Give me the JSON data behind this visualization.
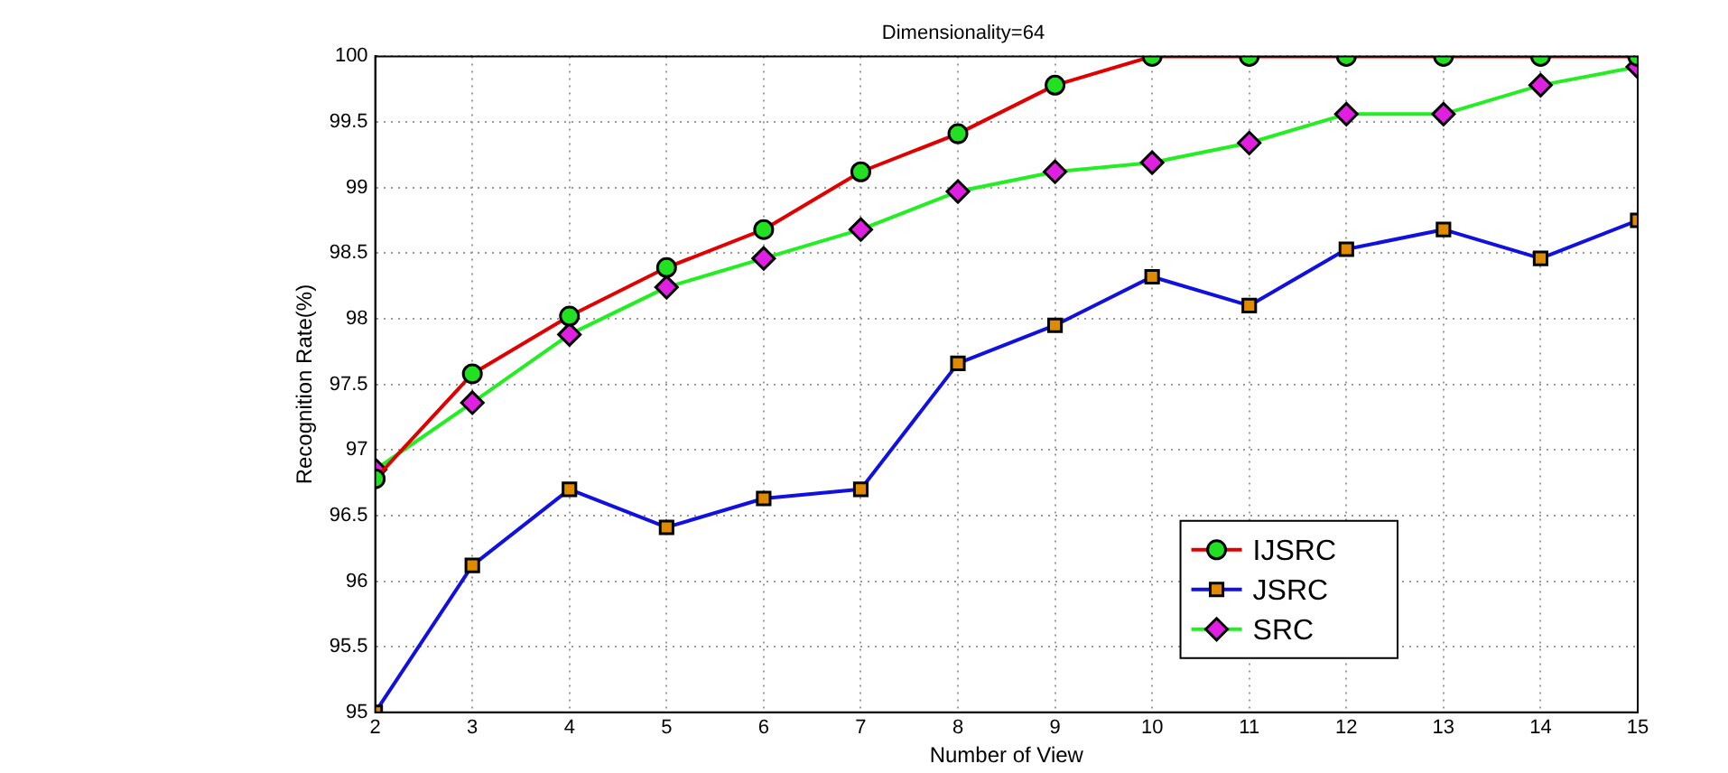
{
  "chart_data": {
    "type": "line",
    "title": "Dimensionality=64",
    "xlabel": "Number of View",
    "ylabel": "Recognition Rate(%)",
    "x": [
      2,
      3,
      4,
      5,
      6,
      7,
      8,
      9,
      10,
      11,
      12,
      13,
      14,
      15
    ],
    "series": [
      {
        "name": "IJSRC",
        "color": "#e00000",
        "marker": "circle",
        "values": [
          96.78,
          97.58,
          98.02,
          98.39,
          98.68,
          99.12,
          99.41,
          99.78,
          100,
          100,
          100,
          100,
          100,
          100
        ]
      },
      {
        "name": "JSRC",
        "color": "#1010e0",
        "marker": "square",
        "values": [
          95.0,
          96.12,
          96.7,
          96.41,
          96.63,
          96.7,
          97.66,
          97.95,
          98.32,
          98.1,
          98.53,
          98.68,
          98.46,
          98.75
        ]
      },
      {
        "name": "SRC",
        "color": "#22ee22",
        "marker": "diamond",
        "values": [
          96.85,
          97.36,
          97.88,
          98.24,
          98.46,
          98.68,
          98.97,
          99.12,
          99.19,
          99.34,
          99.56,
          99.56,
          99.78,
          99.92
        ]
      }
    ],
    "xlim": [
      2,
      15
    ],
    "xticks": [
      2,
      3,
      4,
      5,
      6,
      7,
      8,
      9,
      10,
      11,
      12,
      13,
      14,
      15
    ],
    "ylim": [
      95,
      100
    ],
    "yticks": [
      95,
      95.5,
      96,
      96.5,
      97,
      97.5,
      98,
      98.5,
      99,
      99.5,
      100
    ],
    "grid": true,
    "legend": "bottom right",
    "line_style": "solid"
  }
}
